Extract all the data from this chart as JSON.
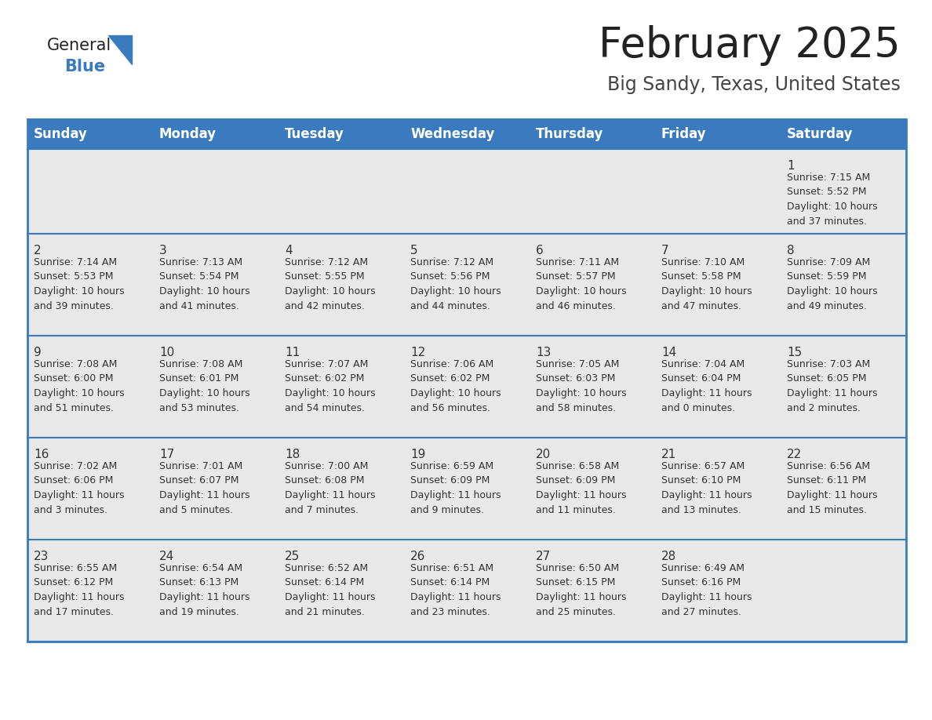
{
  "title": "February 2025",
  "subtitle": "Big Sandy, Texas, United States",
  "header_bg": "#3a7abf",
  "header_text": "#ffffff",
  "row_bg": "#e8e8e8",
  "row_bg_alt": "#ffffff",
  "border_color": "#3a7abf",
  "days_of_week": [
    "Sunday",
    "Monday",
    "Tuesday",
    "Wednesday",
    "Thursday",
    "Friday",
    "Saturday"
  ],
  "title_color": "#222222",
  "subtitle_color": "#444444",
  "day_num_color": "#333333",
  "cell_text_color": "#333333",
  "logo_general_color": "#222222",
  "logo_blue_color": "#3a7abf",
  "logo_triangle_color": "#3a7abf",
  "calendar": [
    [
      {
        "day": null,
        "info": null
      },
      {
        "day": null,
        "info": null
      },
      {
        "day": null,
        "info": null
      },
      {
        "day": null,
        "info": null
      },
      {
        "day": null,
        "info": null
      },
      {
        "day": null,
        "info": null
      },
      {
        "day": 1,
        "info": "Sunrise: 7:15 AM\nSunset: 5:52 PM\nDaylight: 10 hours\nand 37 minutes."
      }
    ],
    [
      {
        "day": 2,
        "info": "Sunrise: 7:14 AM\nSunset: 5:53 PM\nDaylight: 10 hours\nand 39 minutes."
      },
      {
        "day": 3,
        "info": "Sunrise: 7:13 AM\nSunset: 5:54 PM\nDaylight: 10 hours\nand 41 minutes."
      },
      {
        "day": 4,
        "info": "Sunrise: 7:12 AM\nSunset: 5:55 PM\nDaylight: 10 hours\nand 42 minutes."
      },
      {
        "day": 5,
        "info": "Sunrise: 7:12 AM\nSunset: 5:56 PM\nDaylight: 10 hours\nand 44 minutes."
      },
      {
        "day": 6,
        "info": "Sunrise: 7:11 AM\nSunset: 5:57 PM\nDaylight: 10 hours\nand 46 minutes."
      },
      {
        "day": 7,
        "info": "Sunrise: 7:10 AM\nSunset: 5:58 PM\nDaylight: 10 hours\nand 47 minutes."
      },
      {
        "day": 8,
        "info": "Sunrise: 7:09 AM\nSunset: 5:59 PM\nDaylight: 10 hours\nand 49 minutes."
      }
    ],
    [
      {
        "day": 9,
        "info": "Sunrise: 7:08 AM\nSunset: 6:00 PM\nDaylight: 10 hours\nand 51 minutes."
      },
      {
        "day": 10,
        "info": "Sunrise: 7:08 AM\nSunset: 6:01 PM\nDaylight: 10 hours\nand 53 minutes."
      },
      {
        "day": 11,
        "info": "Sunrise: 7:07 AM\nSunset: 6:02 PM\nDaylight: 10 hours\nand 54 minutes."
      },
      {
        "day": 12,
        "info": "Sunrise: 7:06 AM\nSunset: 6:02 PM\nDaylight: 10 hours\nand 56 minutes."
      },
      {
        "day": 13,
        "info": "Sunrise: 7:05 AM\nSunset: 6:03 PM\nDaylight: 10 hours\nand 58 minutes."
      },
      {
        "day": 14,
        "info": "Sunrise: 7:04 AM\nSunset: 6:04 PM\nDaylight: 11 hours\nand 0 minutes."
      },
      {
        "day": 15,
        "info": "Sunrise: 7:03 AM\nSunset: 6:05 PM\nDaylight: 11 hours\nand 2 minutes."
      }
    ],
    [
      {
        "day": 16,
        "info": "Sunrise: 7:02 AM\nSunset: 6:06 PM\nDaylight: 11 hours\nand 3 minutes."
      },
      {
        "day": 17,
        "info": "Sunrise: 7:01 AM\nSunset: 6:07 PM\nDaylight: 11 hours\nand 5 minutes."
      },
      {
        "day": 18,
        "info": "Sunrise: 7:00 AM\nSunset: 6:08 PM\nDaylight: 11 hours\nand 7 minutes."
      },
      {
        "day": 19,
        "info": "Sunrise: 6:59 AM\nSunset: 6:09 PM\nDaylight: 11 hours\nand 9 minutes."
      },
      {
        "day": 20,
        "info": "Sunrise: 6:58 AM\nSunset: 6:09 PM\nDaylight: 11 hours\nand 11 minutes."
      },
      {
        "day": 21,
        "info": "Sunrise: 6:57 AM\nSunset: 6:10 PM\nDaylight: 11 hours\nand 13 minutes."
      },
      {
        "day": 22,
        "info": "Sunrise: 6:56 AM\nSunset: 6:11 PM\nDaylight: 11 hours\nand 15 minutes."
      }
    ],
    [
      {
        "day": 23,
        "info": "Sunrise: 6:55 AM\nSunset: 6:12 PM\nDaylight: 11 hours\nand 17 minutes."
      },
      {
        "day": 24,
        "info": "Sunrise: 6:54 AM\nSunset: 6:13 PM\nDaylight: 11 hours\nand 19 minutes."
      },
      {
        "day": 25,
        "info": "Sunrise: 6:52 AM\nSunset: 6:14 PM\nDaylight: 11 hours\nand 21 minutes."
      },
      {
        "day": 26,
        "info": "Sunrise: 6:51 AM\nSunset: 6:14 PM\nDaylight: 11 hours\nand 23 minutes."
      },
      {
        "day": 27,
        "info": "Sunrise: 6:50 AM\nSunset: 6:15 PM\nDaylight: 11 hours\nand 25 minutes."
      },
      {
        "day": 28,
        "info": "Sunrise: 6:49 AM\nSunset: 6:16 PM\nDaylight: 11 hours\nand 27 minutes."
      },
      {
        "day": null,
        "info": null
      }
    ]
  ]
}
